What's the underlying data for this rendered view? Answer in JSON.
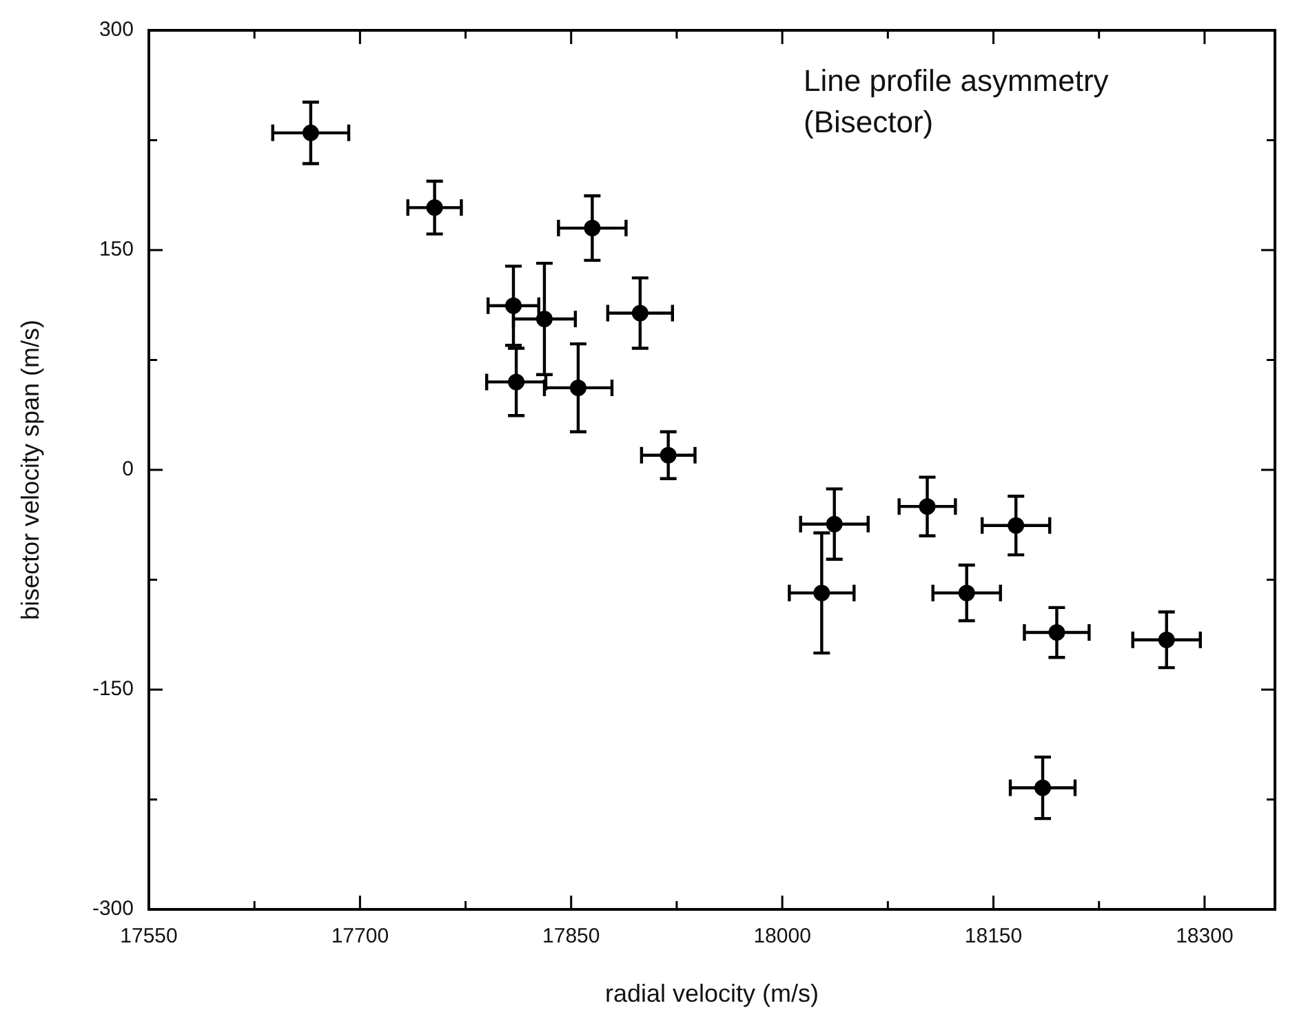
{
  "chart_data": {
    "type": "scatter",
    "xlabel": "radial velocity (m/s)",
    "ylabel": "bisector velocity span (m/s)",
    "annotations": [
      "Line profile asymmetry (Bisector)"
    ],
    "x": [
      17665,
      17753,
      17865,
      17809,
      17831,
      17899,
      17811,
      17855,
      17919,
      18037,
      18028,
      18103,
      18131,
      18166,
      18195,
      18273,
      18185
    ],
    "series": [
      {
        "color": "#000000",
        "values": [
          230,
          179,
          165,
          112,
          103,
          107,
          60,
          56,
          10,
          -37,
          -84,
          -25,
          -84,
          -38,
          -111,
          -116,
          -217
        ],
        "errors": [
          21,
          18,
          22,
          27,
          38,
          24,
          23,
          30,
          16,
          24,
          41,
          20,
          19,
          20,
          17,
          19,
          21
        ],
        "xerrors": [
          27,
          19,
          24,
          18,
          22,
          23,
          21,
          24,
          19,
          24,
          23,
          20,
          24,
          24,
          23,
          24,
          23
        ]
      }
    ],
    "xlim": [
      17550,
      18350
    ],
    "ylim": [
      -300,
      300
    ],
    "xticks": [
      17550,
      {
        "value": 17625,
        "label": null
      },
      17700,
      {
        "value": 17775,
        "label": null
      },
      17850,
      {
        "value": 17925,
        "label": null
      },
      18000,
      {
        "value": 18075,
        "label": null
      },
      18150,
      {
        "value": 18225,
        "label": null
      },
      18300
    ],
    "yticks": [
      -300,
      {
        "value": -225,
        "label": null
      },
      -150,
      {
        "value": -75,
        "label": null
      },
      0,
      {
        "value": 75,
        "label": null
      },
      150,
      {
        "value": 225,
        "label": null
      },
      300
    ],
    "marker": "circle"
  }
}
